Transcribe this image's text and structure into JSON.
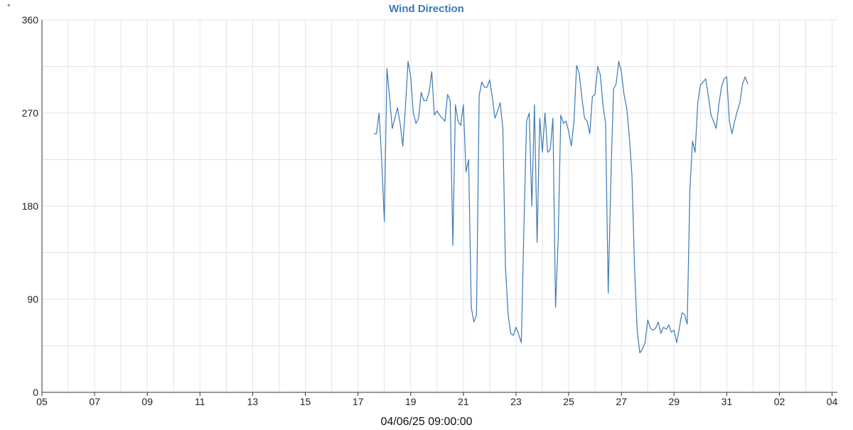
{
  "chart_data": {
    "type": "line",
    "title": "Wind Direction",
    "unit_label": "°",
    "xlabel": "04/06/25 09:00:00",
    "ylabel": "",
    "ylim": [
      0,
      360
    ],
    "yticks": [
      0,
      90,
      180,
      270,
      360
    ],
    "ytick_labels": [
      "0",
      "90",
      "180",
      "270",
      "360"
    ],
    "xlim": [
      0,
      30.2
    ],
    "xticks": [
      0,
      2,
      4,
      6,
      8,
      10,
      12,
      14,
      16,
      18,
      20,
      22,
      24,
      26,
      28,
      30
    ],
    "xtick_labels": [
      "05",
      "07",
      "09",
      "11",
      "13",
      "15",
      "17",
      "19",
      "21",
      "23",
      "25",
      "27",
      "29",
      "31",
      "02",
      "04"
    ],
    "grid": true,
    "legend": "none",
    "colors": {
      "line": "#3a7ab8",
      "title": "#3a7ab8",
      "grid": "#e3e3e3",
      "axis": "#333333",
      "text": "#222222"
    },
    "series": [
      {
        "values": [
          [
            12.6,
            250
          ],
          [
            12.7,
            250
          ],
          [
            12.8,
            270
          ],
          [
            12.9,
            225
          ],
          [
            13.0,
            165
          ],
          [
            13.1,
            313
          ],
          [
            13.2,
            285
          ],
          [
            13.3,
            255
          ],
          [
            13.4,
            265
          ],
          [
            13.5,
            275
          ],
          [
            13.6,
            260
          ],
          [
            13.7,
            238
          ],
          [
            13.8,
            275
          ],
          [
            13.9,
            320
          ],
          [
            14.0,
            305
          ],
          [
            14.1,
            270
          ],
          [
            14.2,
            260
          ],
          [
            14.3,
            265
          ],
          [
            14.4,
            290
          ],
          [
            14.5,
            282
          ],
          [
            14.6,
            282
          ],
          [
            14.7,
            290
          ],
          [
            14.8,
            310
          ],
          [
            14.9,
            268
          ],
          [
            15.0,
            272
          ],
          [
            15.1,
            268
          ],
          [
            15.2,
            265
          ],
          [
            15.3,
            262
          ],
          [
            15.4,
            288
          ],
          [
            15.5,
            282
          ],
          [
            15.6,
            142
          ],
          [
            15.7,
            278
          ],
          [
            15.8,
            262
          ],
          [
            15.9,
            258
          ],
          [
            16.0,
            278
          ],
          [
            16.1,
            213
          ],
          [
            16.2,
            225
          ],
          [
            16.3,
            82
          ],
          [
            16.4,
            68
          ],
          [
            16.5,
            75
          ],
          [
            16.6,
            287
          ],
          [
            16.7,
            300
          ],
          [
            16.8,
            295
          ],
          [
            16.9,
            295
          ],
          [
            17.0,
            302
          ],
          [
            17.1,
            285
          ],
          [
            17.2,
            265
          ],
          [
            17.3,
            272
          ],
          [
            17.4,
            280
          ],
          [
            17.5,
            255
          ],
          [
            17.6,
            120
          ],
          [
            17.7,
            75
          ],
          [
            17.8,
            57
          ],
          [
            17.9,
            55
          ],
          [
            18.0,
            63
          ],
          [
            18.1,
            56
          ],
          [
            18.2,
            48
          ],
          [
            18.3,
            160
          ],
          [
            18.4,
            262
          ],
          [
            18.5,
            270
          ],
          [
            18.6,
            180
          ],
          [
            18.7,
            278
          ],
          [
            18.8,
            145
          ],
          [
            18.9,
            265
          ],
          [
            19.0,
            232
          ],
          [
            19.1,
            270
          ],
          [
            19.2,
            232
          ],
          [
            19.3,
            235
          ],
          [
            19.4,
            265
          ],
          [
            19.5,
            82
          ],
          [
            19.6,
            148
          ],
          [
            19.7,
            268
          ],
          [
            19.8,
            260
          ],
          [
            19.9,
            262
          ],
          [
            20.0,
            252
          ],
          [
            20.1,
            238
          ],
          [
            20.2,
            262
          ],
          [
            20.3,
            316
          ],
          [
            20.4,
            308
          ],
          [
            20.5,
            285
          ],
          [
            20.6,
            265
          ],
          [
            20.7,
            262
          ],
          [
            20.8,
            250
          ],
          [
            20.9,
            286
          ],
          [
            21.0,
            288
          ],
          [
            21.1,
            315
          ],
          [
            21.2,
            307
          ],
          [
            21.3,
            278
          ],
          [
            21.4,
            260
          ],
          [
            21.5,
            96
          ],
          [
            21.6,
            205
          ],
          [
            21.7,
            293
          ],
          [
            21.8,
            298
          ],
          [
            21.9,
            320
          ],
          [
            22.0,
            310
          ],
          [
            22.1,
            288
          ],
          [
            22.2,
            275
          ],
          [
            22.3,
            248
          ],
          [
            22.4,
            210
          ],
          [
            22.5,
            120
          ],
          [
            22.6,
            60
          ],
          [
            22.7,
            38
          ],
          [
            22.8,
            42
          ],
          [
            22.9,
            48
          ],
          [
            23.0,
            70
          ],
          [
            23.1,
            62
          ],
          [
            23.2,
            60
          ],
          [
            23.3,
            62
          ],
          [
            23.4,
            68
          ],
          [
            23.5,
            57
          ],
          [
            23.6,
            63
          ],
          [
            23.7,
            61
          ],
          [
            23.8,
            65
          ],
          [
            23.9,
            58
          ],
          [
            24.0,
            60
          ],
          [
            24.1,
            48
          ],
          [
            24.2,
            62
          ],
          [
            24.3,
            77
          ],
          [
            24.4,
            75
          ],
          [
            24.5,
            66
          ],
          [
            24.6,
            195
          ],
          [
            24.7,
            243
          ],
          [
            24.8,
            232
          ],
          [
            24.9,
            280
          ],
          [
            25.0,
            297
          ],
          [
            25.1,
            300
          ],
          [
            25.2,
            303
          ],
          [
            25.3,
            287
          ],
          [
            25.4,
            268
          ],
          [
            25.5,
            262
          ],
          [
            25.6,
            255
          ],
          [
            25.7,
            278
          ],
          [
            25.8,
            295
          ],
          [
            25.9,
            303
          ],
          [
            26.0,
            305
          ],
          [
            26.1,
            262
          ],
          [
            26.2,
            250
          ],
          [
            26.3,
            262
          ],
          [
            26.4,
            272
          ],
          [
            26.5,
            280
          ],
          [
            26.6,
            298
          ],
          [
            26.7,
            305
          ],
          [
            26.8,
            298
          ]
        ]
      }
    ]
  }
}
